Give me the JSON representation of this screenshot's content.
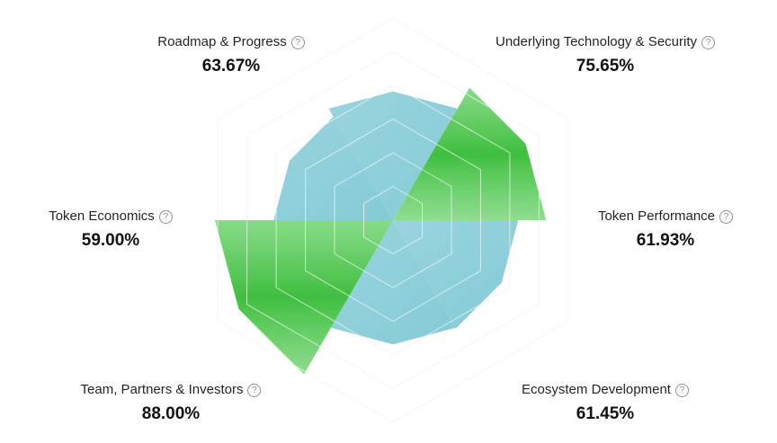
{
  "chart_data": {
    "type": "radar",
    "axes": [
      {
        "label": "Roadmap & Progress",
        "value": 63.67,
        "display": "63.67%",
        "help_icon": "question-circle-icon"
      },
      {
        "label": "Underlying Technology & Security",
        "value": 75.65,
        "display": "75.65%",
        "help_icon": "question-circle-icon"
      },
      {
        "label": "Token Performance",
        "value": 61.93,
        "display": "61.93%",
        "help_icon": "question-circle-icon"
      },
      {
        "label": "Ecosystem Development",
        "value": 61.45,
        "display": "61.45%",
        "help_icon": "question-circle-icon"
      },
      {
        "label": "Team, Partners & Investors",
        "value": 88.0,
        "display": "88.00%",
        "help_icon": "question-circle-icon"
      },
      {
        "label": "Token Economics",
        "value": 59.0,
        "display": "59.00%",
        "help_icon": "question-circle-icon"
      }
    ],
    "range": [
      0,
      100
    ],
    "grid_levels": 6,
    "colors": {
      "blue_fill": "#7cc7d2",
      "green_fill": "#41c241",
      "grid": "#e9eaec"
    }
  }
}
